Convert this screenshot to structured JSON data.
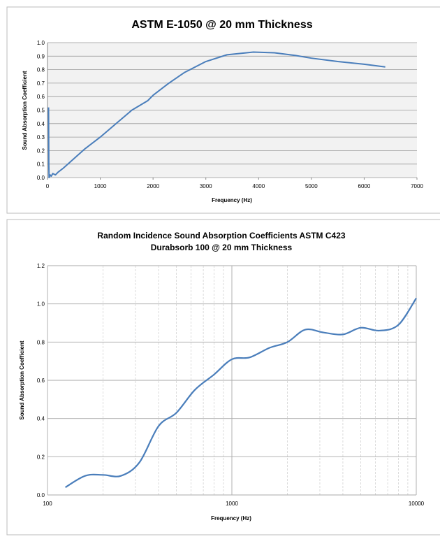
{
  "line_color": "#4a7ebb",
  "chart_data": [
    {
      "type": "line",
      "title": "ASTM E-1050 @ 20 mm Thickness",
      "xlabel": "Frequency (Hz)",
      "ylabel": "Sound Absorption Coefficient",
      "xlim": [
        0,
        7000
      ],
      "ylim": [
        0,
        1.0
      ],
      "x_scale": "linear",
      "grid": "horizontal",
      "xticks": [
        "0",
        "1000",
        "2000",
        "3000",
        "4000",
        "5000",
        "6000",
        "7000"
      ],
      "yticks": [
        "0.0",
        "0.1",
        "0.2",
        "0.3",
        "0.4",
        "0.5",
        "0.6",
        "0.7",
        "0.8",
        "0.9",
        "1.0"
      ],
      "x": [
        20,
        25,
        30,
        50,
        70,
        100,
        150,
        200,
        300,
        500,
        700,
        1000,
        1300,
        1600,
        1900,
        2000,
        2300,
        2600,
        3000,
        3400,
        3900,
        4300,
        4700,
        5000,
        5500,
        6000,
        6400
      ],
      "y": [
        0.52,
        0.1,
        0.0,
        0.02,
        0.01,
        0.03,
        0.02,
        0.04,
        0.07,
        0.14,
        0.21,
        0.3,
        0.4,
        0.5,
        0.57,
        0.61,
        0.7,
        0.78,
        0.86,
        0.91,
        0.93,
        0.925,
        0.905,
        0.885,
        0.86,
        0.84,
        0.82
      ]
    },
    {
      "type": "line",
      "title": "Random Incidence Sound Absorption Coefficients ASTM C423",
      "subtitle": "Durabsorb 100 @ 20 mm Thickness",
      "xlabel": "Frequency (Hz)",
      "ylabel": "Sound Absorption Coefficient",
      "xlim": [
        100,
        10000
      ],
      "ylim": [
        0,
        1.2
      ],
      "x_scale": "log",
      "grid": "both",
      "xticks": [
        "100",
        "1000",
        "10000"
      ],
      "yticks": [
        "0.0",
        "0.2",
        "0.4",
        "0.6",
        "0.8",
        "1.0",
        "1.2"
      ],
      "x": [
        125,
        160,
        200,
        250,
        315,
        400,
        500,
        630,
        800,
        1000,
        1250,
        1600,
        2000,
        2500,
        3150,
        4000,
        5000,
        6300,
        8000,
        10000
      ],
      "y": [
        0.04,
        0.1,
        0.105,
        0.1,
        0.17,
        0.36,
        0.43,
        0.55,
        0.63,
        0.71,
        0.72,
        0.77,
        0.8,
        0.865,
        0.85,
        0.84,
        0.875,
        0.86,
        0.89,
        1.03
      ]
    }
  ]
}
